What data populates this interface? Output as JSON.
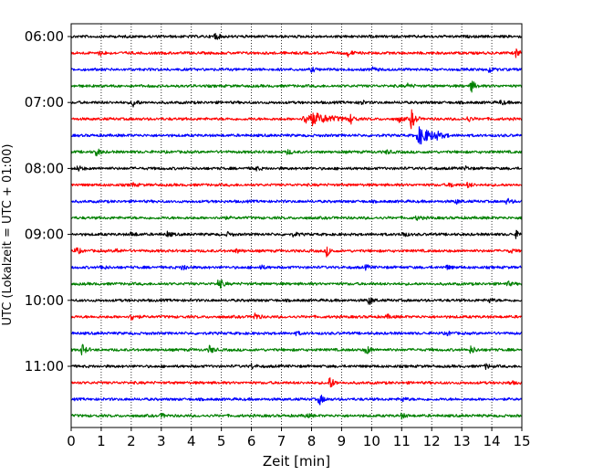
{
  "chart_data": {
    "type": "line",
    "subtype": "helicorder",
    "xlabel": "Zeit  [min]",
    "ylabel": "UTC (Lokalzeit = UTC + 01:00)",
    "xlim": [
      0,
      15
    ],
    "x_ticks": [
      0,
      1,
      2,
      3,
      4,
      5,
      6,
      7,
      8,
      9,
      10,
      11,
      12,
      13,
      14,
      15
    ],
    "x_grid": "dotted vertical at each minute",
    "y_tick_labels": [
      "06:00",
      "07:00",
      "08:00",
      "09:00",
      "10:00",
      "11:00"
    ],
    "traces_per_hour": 4,
    "trace_interval_min": 15,
    "trace_colors": [
      "#000000",
      "#ff0000",
      "#0000ff",
      "#008000"
    ],
    "traces": [
      {
        "start": "06:00",
        "color": "#000000",
        "events": [
          {
            "t": 4.75,
            "amp": 2.2
          }
        ]
      },
      {
        "start": "06:15",
        "color": "#ff0000",
        "events": [
          {
            "t": 0.95,
            "amp": 1.3
          },
          {
            "t": 9.2,
            "amp": 1.6
          },
          {
            "t": 14.8,
            "amp": 2.0
          }
        ]
      },
      {
        "start": "06:30",
        "color": "#0000ff",
        "events": [
          {
            "t": 8.0,
            "amp": 1.0
          },
          {
            "t": 10.0,
            "amp": 1.2
          },
          {
            "t": 13.9,
            "amp": 1.5
          }
        ]
      },
      {
        "start": "06:45",
        "color": "#008000",
        "events": [
          {
            "t": 11.2,
            "amp": 1.0
          },
          {
            "t": 13.3,
            "amp": 3.2
          }
        ]
      },
      {
        "start": "07:00",
        "color": "#000000",
        "events": [
          {
            "t": 2.05,
            "amp": 2.2
          },
          {
            "t": 9.6,
            "amp": 1.5
          },
          {
            "t": 14.3,
            "amp": 1.2
          }
        ]
      },
      {
        "start": "07:15",
        "color": "#ff0000",
        "events": [
          {
            "t": 7.9,
            "amp": 3.5,
            "width": 0.6
          },
          {
            "t": 9.3,
            "amp": 2.0
          },
          {
            "t": 10.9,
            "amp": 1.6
          },
          {
            "t": 11.3,
            "amp": 5.5
          },
          {
            "t": 13.2,
            "amp": 1.3
          }
        ]
      },
      {
        "start": "07:30",
        "color": "#0000ff",
        "events": [
          {
            "t": 11.6,
            "amp": 4.2,
            "width": 0.4
          },
          {
            "t": 12.1,
            "amp": 1.6
          }
        ]
      },
      {
        "start": "07:45",
        "color": "#008000",
        "events": [
          {
            "t": 0.8,
            "amp": 2.5
          },
          {
            "t": 7.2,
            "amp": 1.2
          },
          {
            "t": 10.5,
            "amp": 1.0
          }
        ]
      },
      {
        "start": "08:00",
        "color": "#000000",
        "events": [
          {
            "t": 0.2,
            "amp": 1.5
          },
          {
            "t": 6.1,
            "amp": 1.2
          },
          {
            "t": 13.1,
            "amp": 1.0
          }
        ]
      },
      {
        "start": "08:15",
        "color": "#ff0000",
        "events": [
          {
            "t": 2.0,
            "amp": 1.0
          },
          {
            "t": 12.6,
            "amp": 1.2
          },
          {
            "t": 13.2,
            "amp": 1.3
          }
        ]
      },
      {
        "start": "08:30",
        "color": "#0000ff",
        "events": [
          {
            "t": 12.8,
            "amp": 1.0
          },
          {
            "t": 14.5,
            "amp": 1.5
          }
        ]
      },
      {
        "start": "08:45",
        "color": "#008000",
        "events": [
          {
            "t": 5.0,
            "amp": 0.9
          },
          {
            "t": 11.5,
            "amp": 1.0
          }
        ]
      },
      {
        "start": "09:00",
        "color": "#000000",
        "events": [
          {
            "t": 2.0,
            "amp": 1.2
          },
          {
            "t": 3.2,
            "amp": 1.3
          },
          {
            "t": 5.2,
            "amp": 1.0
          },
          {
            "t": 7.4,
            "amp": 1.0
          },
          {
            "t": 11.0,
            "amp": 1.5
          },
          {
            "t": 14.8,
            "amp": 1.6
          }
        ]
      },
      {
        "start": "09:15",
        "color": "#ff0000",
        "events": [
          {
            "t": 0.15,
            "amp": 1.8
          },
          {
            "t": 1.5,
            "amp": 1.0
          },
          {
            "t": 5.5,
            "amp": 1.0
          },
          {
            "t": 8.5,
            "amp": 2.4
          },
          {
            "t": 14.6,
            "amp": 1.0
          }
        ]
      },
      {
        "start": "09:30",
        "color": "#0000ff",
        "events": [
          {
            "t": 1.0,
            "amp": 1.2
          },
          {
            "t": 3.7,
            "amp": 2.0
          },
          {
            "t": 6.3,
            "amp": 1.0
          },
          {
            "t": 9.8,
            "amp": 1.0
          },
          {
            "t": 12.5,
            "amp": 1.0
          }
        ]
      },
      {
        "start": "09:45",
        "color": "#008000",
        "events": [
          {
            "t": 4.9,
            "amp": 3.0
          },
          {
            "t": 14.5,
            "amp": 1.2
          }
        ]
      },
      {
        "start": "10:00",
        "color": "#000000",
        "events": [
          {
            "t": 9.9,
            "amp": 2.2
          },
          {
            "t": 13.9,
            "amp": 1.2
          }
        ]
      },
      {
        "start": "10:15",
        "color": "#ff0000",
        "events": [
          {
            "t": 2.0,
            "amp": 2.0
          },
          {
            "t": 6.1,
            "amp": 2.0
          },
          {
            "t": 10.5,
            "amp": 1.0
          }
        ]
      },
      {
        "start": "10:30",
        "color": "#0000ff",
        "events": [
          {
            "t": 7.5,
            "amp": 0.8
          },
          {
            "t": 12.5,
            "amp": 1.0
          }
        ]
      },
      {
        "start": "10:45",
        "color": "#008000",
        "events": [
          {
            "t": 0.35,
            "amp": 2.8
          },
          {
            "t": 4.6,
            "amp": 2.0
          },
          {
            "t": 9.8,
            "amp": 2.6
          },
          {
            "t": 13.3,
            "amp": 2.0
          }
        ]
      },
      {
        "start": "11:00",
        "color": "#000000",
        "events": [
          {
            "t": 6.0,
            "amp": 1.2
          },
          {
            "t": 13.8,
            "amp": 1.2
          }
        ]
      },
      {
        "start": "11:15",
        "color": "#ff0000",
        "events": [
          {
            "t": 8.6,
            "amp": 3.2
          },
          {
            "t": 14.6,
            "amp": 0.9
          }
        ]
      },
      {
        "start": "11:30",
        "color": "#0000ff",
        "events": [
          {
            "t": 8.25,
            "amp": 3.0
          },
          {
            "t": 11.0,
            "amp": 1.2
          }
        ]
      },
      {
        "start": "11:45",
        "color": "#008000",
        "events": [
          {
            "t": 3.0,
            "amp": 1.0
          },
          {
            "t": 7.8,
            "amp": 1.0
          },
          {
            "t": 11.0,
            "amp": 1.2
          }
        ]
      }
    ]
  }
}
